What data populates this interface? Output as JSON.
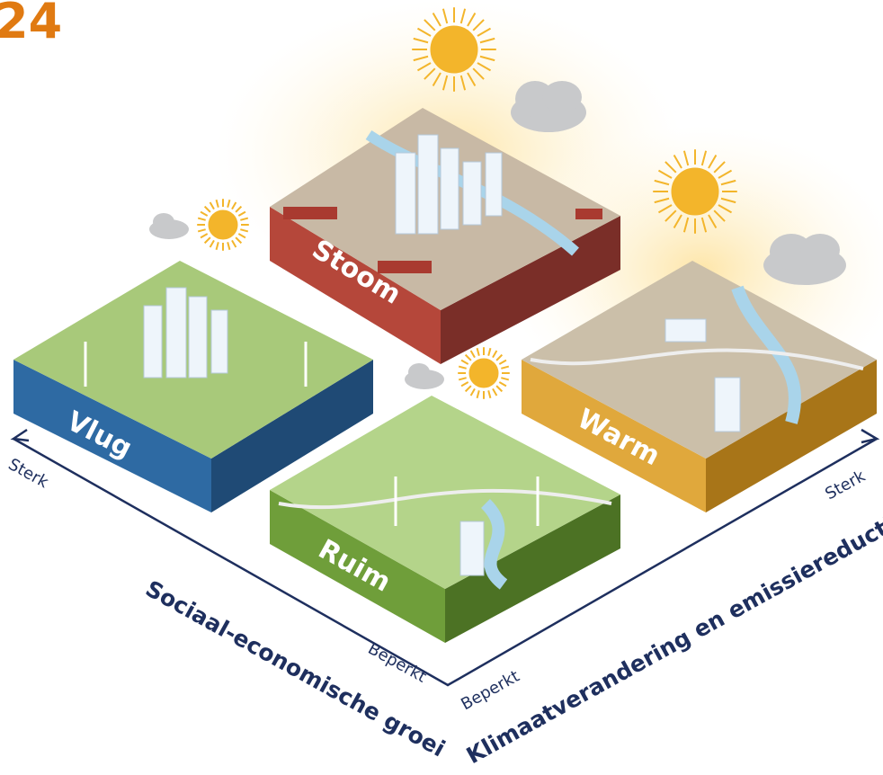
{
  "header": {
    "title": "24"
  },
  "scenarios": [
    {
      "label": "Stoom"
    },
    {
      "label": "Vlug"
    },
    {
      "label": "Warm"
    },
    {
      "label": "Ruim"
    }
  ],
  "axes": [
    {
      "title": "Sociaal-economische groei",
      "high": "Sterk",
      "low": "Beperkt"
    },
    {
      "title": "Klimaatverandering en emissiereductie",
      "high": "Sterk",
      "low": "Beperkt"
    }
  ]
}
